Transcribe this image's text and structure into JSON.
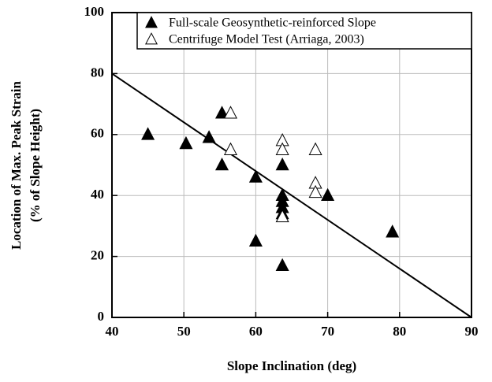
{
  "chart_data": {
    "type": "scatter",
    "xlabel": "Slope Inclination (deg)",
    "ylabel": [
      "Location of Max. Peak Strain",
      "(% of Slope Height)"
    ],
    "xlim": [
      40,
      90
    ],
    "ylim": [
      0,
      100
    ],
    "xticks": [
      40,
      50,
      60,
      70,
      80,
      90
    ],
    "yticks": [
      0,
      20,
      40,
      60,
      80,
      100
    ],
    "grid": true,
    "legend": "upper right",
    "series": [
      {
        "name": "Full-scale Geosynthetic-reinforced Slope",
        "color": "#000000",
        "filled": true,
        "x": [
          45,
          50.3,
          53.5,
          55.3,
          55.3,
          60,
          60,
          63.7,
          63.7,
          63.7,
          63.7,
          63.7,
          63.7,
          70,
          79
        ],
        "y": [
          60,
          57,
          59,
          67,
          50,
          46,
          25,
          50,
          40,
          38,
          36,
          34,
          17,
          40,
          28
        ]
      },
      {
        "name": "Centrifuge Model Test (Arriaga, 2003)",
        "color": "#000000",
        "filled": false,
        "x": [
          56.5,
          56.5,
          63.7,
          63.7,
          63.7,
          68.3,
          68.3,
          68.3
        ],
        "y": [
          67,
          55,
          58,
          55,
          33,
          55,
          44,
          41
        ]
      }
    ],
    "trend_line": {
      "x": [
        40,
        90
      ],
      "y": [
        80,
        0
      ],
      "color": "#000000"
    }
  }
}
